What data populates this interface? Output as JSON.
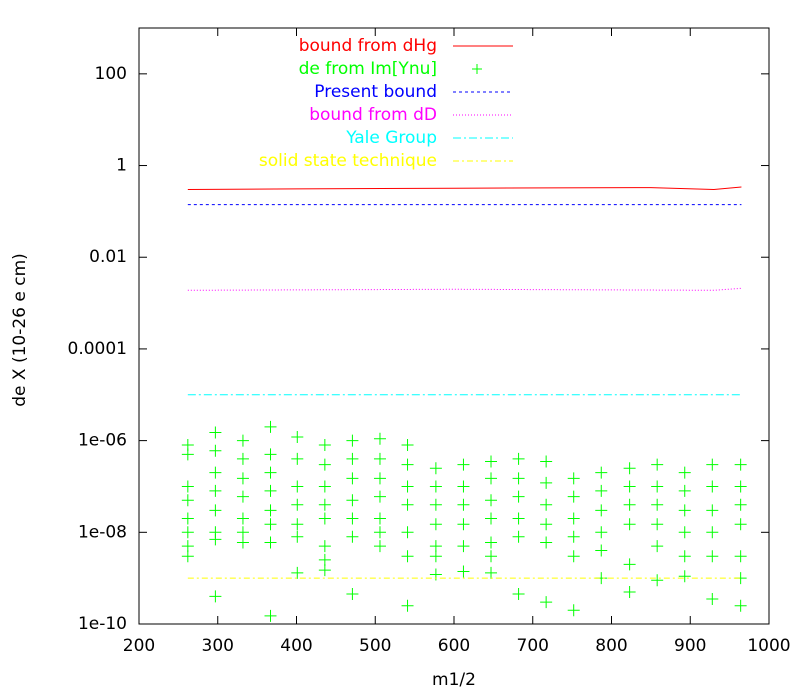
{
  "chart_data": {
    "type": "line",
    "xlabel": "m1/2",
    "ylabel": "de  X (10-26 e cm)",
    "xlim": [
      200,
      1000
    ],
    "xticks": [
      200,
      300,
      400,
      500,
      600,
      700,
      800,
      900,
      1000
    ],
    "ylim": [
      1e-10,
      1000
    ],
    "log_y": true,
    "yticks": [
      {
        "value": 1e-10,
        "label": "1e-10"
      },
      {
        "value": 1e-08,
        "label": "1e-08"
      },
      {
        "value": 1e-06,
        "label": "1e-06"
      },
      {
        "value": 0.0001,
        "label": "0.0001"
      },
      0.01,
      1,
      100
    ],
    "legend": "top",
    "series": [
      {
        "name": "bound from dHg",
        "color": "#ff0000",
        "dash": "none",
        "x": [
          262,
          400,
          600,
          850,
          930,
          965
        ],
        "values": [
          0.3,
          0.31,
          0.32,
          0.33,
          0.3,
          0.34
        ]
      },
      {
        "name": "de from Im[Ynu]",
        "color": "#00ff00",
        "marker": "plus",
        "x": [
          262,
          262,
          262,
          262,
          262,
          262,
          262,
          262,
          297,
          297,
          297,
          297,
          297,
          297,
          297,
          297,
          332,
          332,
          332,
          332,
          332,
          332,
          332,
          367,
          367,
          367,
          367,
          367,
          367,
          367,
          367,
          401,
          401,
          401,
          401,
          401,
          401,
          401,
          436,
          436,
          436,
          436,
          436,
          436,
          436,
          436,
          471,
          471,
          471,
          471,
          471,
          471,
          471,
          506,
          506,
          506,
          506,
          506,
          506,
          506,
          541,
          541,
          541,
          541,
          541,
          541,
          541,
          577,
          577,
          577,
          577,
          577,
          577,
          577,
          612,
          612,
          612,
          612,
          612,
          612,
          647,
          647,
          647,
          647,
          647,
          647,
          647,
          682,
          682,
          682,
          682,
          682,
          682,
          717,
          717,
          717,
          717,
          717,
          717,
          752,
          752,
          752,
          752,
          752,
          752,
          787,
          787,
          787,
          787,
          787,
          787,
          823,
          823,
          823,
          823,
          823,
          823,
          858,
          858,
          858,
          858,
          858,
          858,
          893,
          893,
          893,
          893,
          893,
          893,
          928,
          928,
          928,
          928,
          928,
          928,
          964,
          964,
          964,
          964,
          964,
          964,
          964
        ],
        "values": [
          8e-07,
          5e-07,
          1e-07,
          5e-08,
          2e-08,
          1e-08,
          5e-09,
          3e-09,
          1.5e-06,
          6e-07,
          2e-07,
          8e-08,
          3e-08,
          1e-08,
          7e-09,
          4e-10,
          1e-06,
          4e-07,
          1.5e-07,
          6e-08,
          2e-08,
          1e-08,
          6e-09,
          2e-06,
          5e-07,
          2e-07,
          8e-08,
          3e-08,
          1.5e-08,
          6e-09,
          1.5e-10,
          1.2e-06,
          4e-07,
          1e-07,
          4e-08,
          1.5e-08,
          8e-09,
          1.3e-09,
          8e-07,
          3e-07,
          1e-07,
          4e-08,
          2e-08,
          5e-09,
          2.5e-09,
          1.5e-09,
          1e-06,
          4e-07,
          1.5e-07,
          5e-08,
          2e-08,
          8e-09,
          4.5e-10,
          1.1e-06,
          4e-07,
          1.5e-07,
          6e-08,
          2e-08,
          1e-08,
          5e-09,
          8e-07,
          3e-07,
          1e-07,
          4e-08,
          1e-08,
          3e-09,
          2.5e-10,
          2.5e-07,
          1e-07,
          4e-08,
          1.5e-08,
          5e-09,
          3e-09,
          1.2e-09,
          3e-07,
          1e-07,
          4e-08,
          1.5e-08,
          5e-09,
          1.4e-09,
          3.5e-07,
          1.5e-07,
          5e-08,
          2e-08,
          6e-09,
          3e-09,
          1.3e-09,
          4e-07,
          1.5e-07,
          6e-08,
          2e-08,
          8e-09,
          4.5e-10,
          3.5e-07,
          1.2e-07,
          4e-08,
          1.5e-08,
          6e-09,
          3e-10,
          1.5e-07,
          6e-08,
          2e-08,
          8e-09,
          3e-09,
          2e-10,
          2e-07,
          8e-08,
          3e-08,
          1e-08,
          4e-09,
          1e-09,
          2.5e-07,
          1e-07,
          4e-08,
          1.5e-08,
          2e-09,
          5e-10,
          3e-07,
          1e-07,
          4e-08,
          1.5e-08,
          5e-09,
          9e-10,
          2e-07,
          8e-08,
          3e-08,
          1e-08,
          3e-09,
          1.1e-09,
          3e-07,
          1e-07,
          3e-08,
          1e-08,
          3e-09,
          3.5e-10,
          3e-07,
          1e-07,
          4e-08,
          1.5e-08,
          3e-09,
          1e-09,
          2.5e-10
        ]
      },
      {
        "name": "Present bound",
        "color": "#0000ff",
        "dash": "3,3",
        "x": [
          262,
          965
        ],
        "values": [
          0.14,
          0.14
        ]
      },
      {
        "name": "bound from dD",
        "color": "#ff00ff",
        "dash": "1,2",
        "x": [
          262,
          600,
          930,
          965
        ],
        "values": [
          0.0019,
          0.002,
          0.0019,
          0.0021
        ]
      },
      {
        "name": "Yale Group",
        "color": "#00ffff",
        "dash": "8,3,2,3",
        "x": [
          262,
          965
        ],
        "values": [
          1e-05,
          1e-05
        ]
      },
      {
        "name": "solid state technique",
        "color": "#ffff00",
        "dash": "6,3,2,3",
        "x": [
          262,
          965
        ],
        "values": [
          1e-09,
          1e-09
        ]
      }
    ]
  }
}
